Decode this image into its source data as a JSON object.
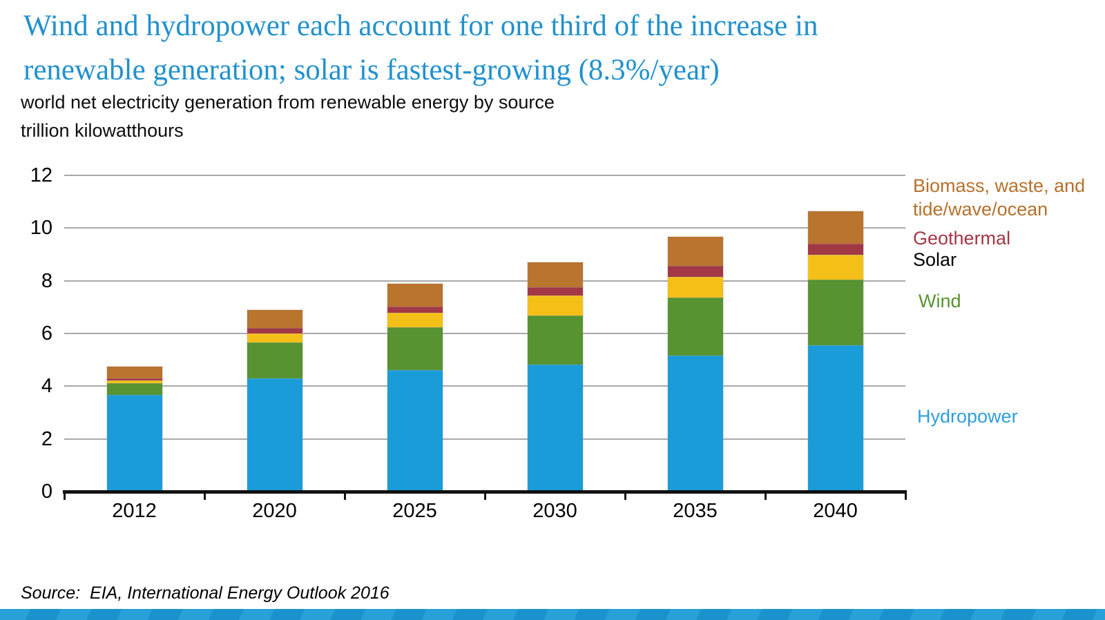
{
  "header": {
    "title_line1": "Wind and hydropower each account for one third of the increase in",
    "title_line2": "renewable generation; solar is fastest-growing (8.3%/year)",
    "title_color": "#2191cd",
    "subtitle": "world net electricity generation from renewable energy by source",
    "units_label": "trillion kilowatthours"
  },
  "chart_data": {
    "type": "bar",
    "stacked": true,
    "title": "world net electricity generation from renewable energy by source",
    "ylabel": "trillion kilowatthours",
    "xlabel": "",
    "categories": [
      "2012",
      "2020",
      "2025",
      "2030",
      "2035",
      "2040"
    ],
    "series": [
      {
        "name": "Hydropower",
        "color": "#1a9cd8",
        "values": [
          3.66,
          4.29,
          4.62,
          4.82,
          5.17,
          5.56
        ]
      },
      {
        "name": "Wind",
        "color": "#579331",
        "values": [
          0.46,
          1.36,
          1.62,
          1.86,
          2.2,
          2.49
        ]
      },
      {
        "name": "Solar",
        "color": "#f4c018",
        "values": [
          0.11,
          0.35,
          0.56,
          0.75,
          0.79,
          0.94
        ]
      },
      {
        "name": "Geothermal",
        "color": "#a23746",
        "values": [
          0.07,
          0.2,
          0.22,
          0.33,
          0.41,
          0.41
        ]
      },
      {
        "name": "Biomass, waste, and tide/wave/ocean",
        "color": "#b9742e",
        "values": [
          0.45,
          0.7,
          0.88,
          0.94,
          1.1,
          1.25
        ]
      }
    ],
    "totals": [
      4.75,
      6.9,
      7.9,
      8.7,
      9.67,
      10.65
    ],
    "ylim": [
      0,
      12
    ],
    "yticks": [
      0,
      2,
      4,
      6,
      8,
      10,
      12
    ],
    "grid": true,
    "gridline_color": "#a8a8a8",
    "legend_position": "right"
  },
  "legend": {
    "items": [
      {
        "label": "Biomass, waste, and tide/wave/ocean",
        "color": "#b5712b"
      },
      {
        "label": "Geothermal",
        "color": "#a23746"
      },
      {
        "label": "Solar",
        "color": "#000000"
      },
      {
        "label": "Wind",
        "color": "#579331"
      },
      {
        "label": "Hydropower",
        "color": "#2d9fdb"
      }
    ]
  },
  "footer": {
    "source": "Source:  EIA, International Energy Outlook 2016",
    "band_color": "#1b9bd7"
  }
}
